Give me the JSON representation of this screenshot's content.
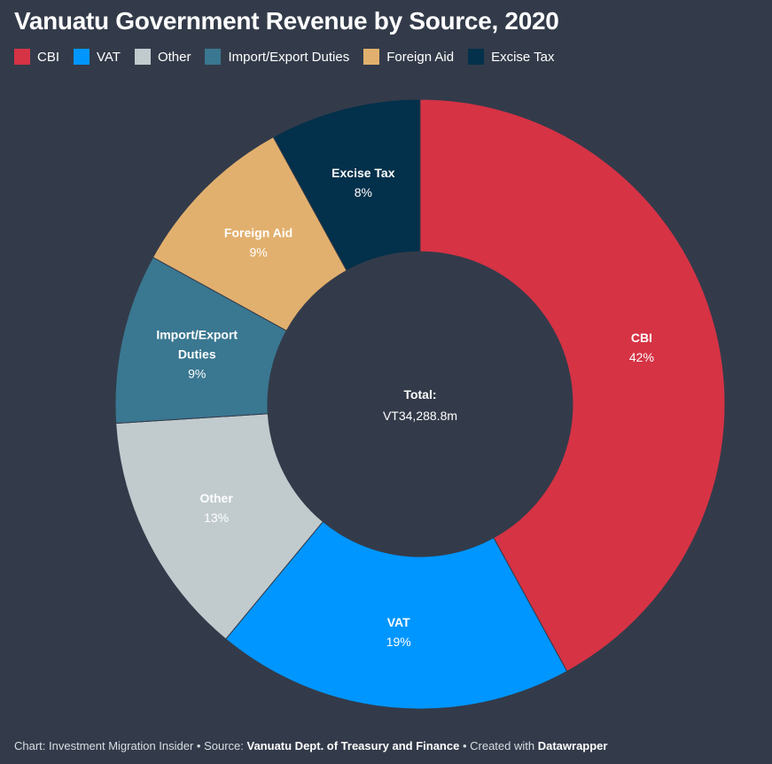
{
  "title": "Vanuatu Government Revenue by Source, 2020",
  "chart_data": {
    "type": "pie",
    "variant": "donut",
    "title": "Vanuatu Government Revenue by Source, 2020",
    "legend_position": "top",
    "center_label": "Total:",
    "center_value": "VT34,288.8m",
    "slices": [
      {
        "name": "CBI",
        "value": 42,
        "label_lines": [
          "CBI"
        ],
        "pct": "42%",
        "color": "#d63345",
        "label_color": "#ffffff"
      },
      {
        "name": "VAT",
        "value": 19,
        "label_lines": [
          "VAT"
        ],
        "pct": "19%",
        "color": "#0096ff",
        "label_color": "#ffffff"
      },
      {
        "name": "Other",
        "value": 13,
        "label_lines": [
          "Other"
        ],
        "pct": "13%",
        "color": "#c1cbce",
        "label_color": "#ffffff"
      },
      {
        "name": "Import/Export Duties",
        "value": 9,
        "label_lines": [
          "Import/Export",
          "Duties"
        ],
        "pct": "9%",
        "color": "#3a7791",
        "label_color": "#ffffff"
      },
      {
        "name": "Foreign Aid",
        "value": 9,
        "label_lines": [
          "Foreign Aid"
        ],
        "pct": "9%",
        "color": "#e2b06e",
        "label_color": "#ffffff"
      },
      {
        "name": "Excise Tax",
        "value": 8,
        "label_lines": [
          "Excise Tax"
        ],
        "pct": "8%",
        "color": "#03304a",
        "label_color": "#ffffff"
      }
    ]
  },
  "footer": {
    "prefix": "Chart: Investment Migration Insider • Source: ",
    "source": "Vanuatu Dept. of Treasury and Finance",
    "middle": " • Created with ",
    "tool": "Datawrapper"
  }
}
